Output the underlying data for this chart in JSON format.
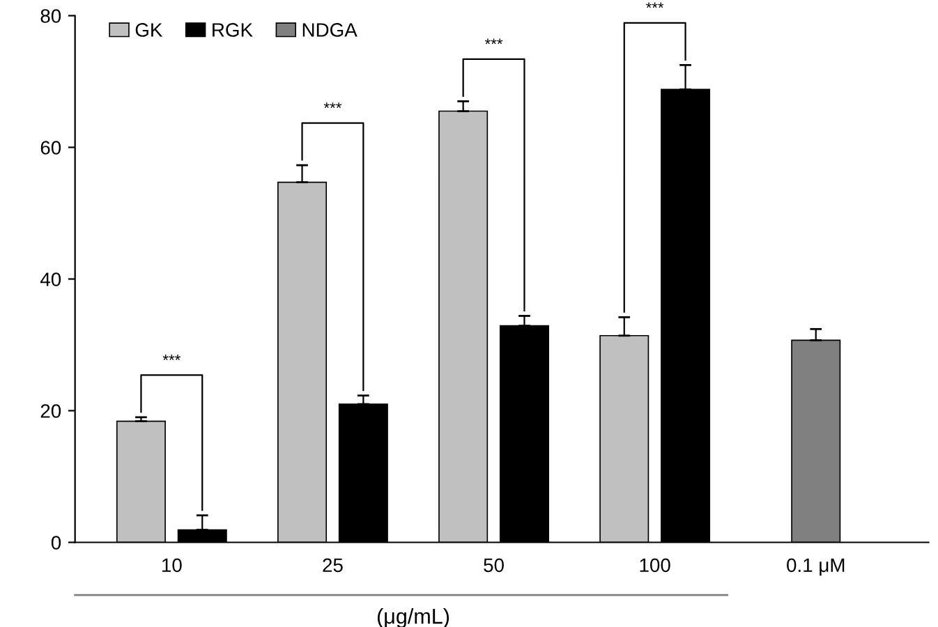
{
  "chart_data": {
    "type": "bar",
    "xlabel": "(μg/mL)",
    "categories": [
      "10",
      "25",
      "50",
      "100",
      "0.1 μM"
    ],
    "series": [
      {
        "name": "GK",
        "color": "#c0c0c0",
        "values": [
          18.4,
          54.7,
          65.5,
          31.4,
          null
        ],
        "errors": [
          0.6,
          2.6,
          1.5,
          2.8,
          null
        ]
      },
      {
        "name": "RGK",
        "color": "#000000",
        "values": [
          1.9,
          21.0,
          32.9,
          68.8,
          null
        ],
        "errors": [
          2.2,
          1.3,
          1.5,
          3.7,
          null
        ]
      },
      {
        "name": "NDGA",
        "color": "#808080",
        "values": [
          null,
          null,
          null,
          null,
          30.7
        ],
        "errors": [
          null,
          null,
          null,
          null,
          1.7
        ]
      }
    ],
    "annotations": [
      "***",
      "***",
      "***",
      "***"
    ],
    "ylim": [
      0,
      80
    ],
    "yticks": [
      0,
      20,
      40,
      60,
      80
    ],
    "grid": false,
    "legend": "top left"
  }
}
